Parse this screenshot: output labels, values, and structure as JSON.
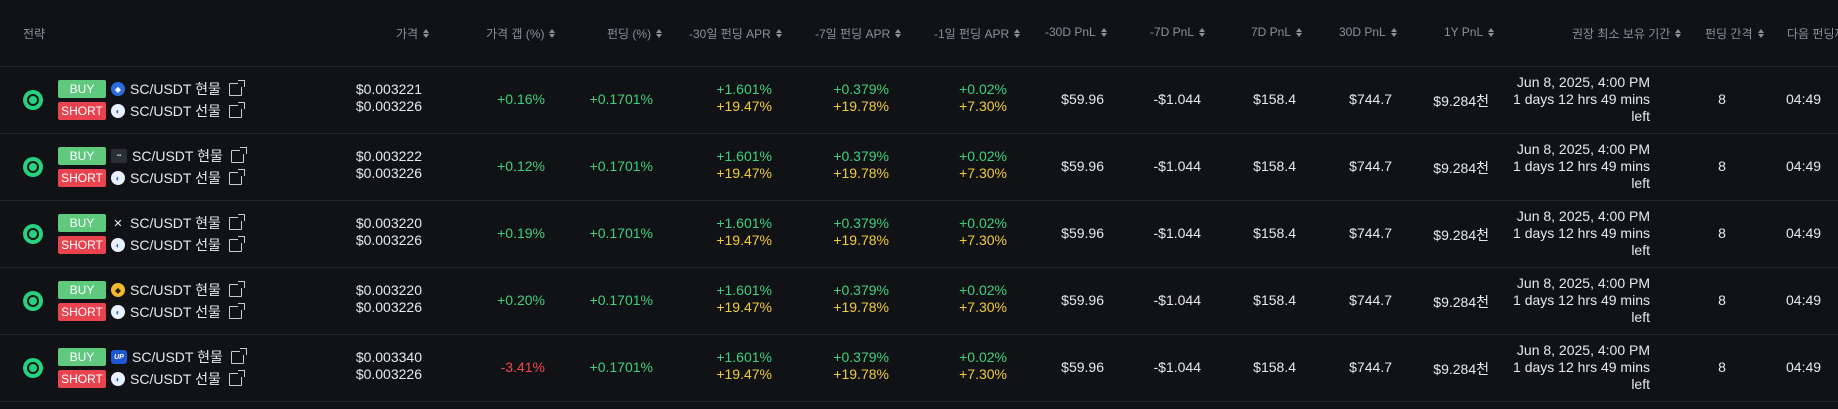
{
  "headers": {
    "strategy": "전략",
    "price": "가격",
    "gap": "가격 갭 (%)",
    "funding": "펀딩 (%)",
    "apr30": "-30일 펀딩 APR",
    "apr7": "-7일 펀딩 APR",
    "apr1": "-1일 펀딩 APR",
    "pnl30neg": "-30D PnL",
    "pnl7neg": "-7D PnL",
    "pnl7": "7D PnL",
    "pnl30": "30D PnL",
    "pnl1y": "1Y PnL",
    "hold": "권장 최소 보유 기간",
    "interval": "펀딩 간격",
    "next": "다음 펀딩까"
  },
  "labels": {
    "buy": "BUY",
    "short": "SHORT"
  },
  "rows": [
    {
      "buy_exchange_icon": "droplet-icon",
      "buy_pair": "SC/USDT 현물",
      "short_exchange_icon": "mexc-icon",
      "short_pair": "SC/USDT 선물",
      "price_buy": "$0.003221",
      "price_short": "$0.003226",
      "gap": "+0.16%",
      "gap_color": "#3fd07e",
      "funding": "+0.1701%",
      "apr30_a": "+1.601%",
      "apr30_b": "+19.47%",
      "apr7_a": "+0.379%",
      "apr7_b": "+19.78%",
      "apr1_a": "+0.02%",
      "apr1_b": "+7.30%",
      "pnl30neg": "$59.96",
      "pnl7neg": "-$1.044",
      "pnl7": "$158.4",
      "pnl30": "$744.7",
      "pnl1y": "$9.284천",
      "hold_date": "Jun 8, 2025, 4:00 PM",
      "hold_dur": "1 days 12 hrs 49 mins",
      "hold_left": "left",
      "interval": "8",
      "next": "04:49"
    },
    {
      "buy_exchange_icon": "mini-exchange-icon",
      "buy_pair": "SC/USDT 현물",
      "short_exchange_icon": "mexc-icon",
      "short_pair": "SC/USDT 선물",
      "price_buy": "$0.003222",
      "price_short": "$0.003226",
      "gap": "+0.12%",
      "gap_color": "#3fd07e",
      "funding": "+0.1701%",
      "apr30_a": "+1.601%",
      "apr30_b": "+19.47%",
      "apr7_a": "+0.379%",
      "apr7_b": "+19.78%",
      "apr1_a": "+0.02%",
      "apr1_b": "+7.30%",
      "pnl30neg": "$59.96",
      "pnl7neg": "-$1.044",
      "pnl7": "$158.4",
      "pnl30": "$744.7",
      "pnl1y": "$9.284천",
      "hold_date": "Jun 8, 2025, 4:00 PM",
      "hold_dur": "1 days 12 hrs 49 mins",
      "hold_left": "left",
      "interval": "8",
      "next": "04:49"
    },
    {
      "buy_exchange_icon": "x-exchange-icon",
      "buy_pair": "SC/USDT 현물",
      "short_exchange_icon": "mexc-icon",
      "short_pair": "SC/USDT 선물",
      "price_buy": "$0.003220",
      "price_short": "$0.003226",
      "gap": "+0.19%",
      "gap_color": "#3fd07e",
      "funding": "+0.1701%",
      "apr30_a": "+1.601%",
      "apr30_b": "+19.47%",
      "apr7_a": "+0.379%",
      "apr7_b": "+19.78%",
      "apr1_a": "+0.02%",
      "apr1_b": "+7.30%",
      "pnl30neg": "$59.96",
      "pnl7neg": "-$1.044",
      "pnl7": "$158.4",
      "pnl30": "$744.7",
      "pnl1y": "$9.284천",
      "hold_date": "Jun 8, 2025, 4:00 PM",
      "hold_dur": "1 days 12 hrs 49 mins",
      "hold_left": "left",
      "interval": "8",
      "next": "04:49"
    },
    {
      "buy_exchange_icon": "binance-icon",
      "buy_pair": "SC/USDT 현물",
      "short_exchange_icon": "mexc-icon",
      "short_pair": "SC/USDT 선물",
      "price_buy": "$0.003220",
      "price_short": "$0.003226",
      "gap": "+0.20%",
      "gap_color": "#3fd07e",
      "funding": "+0.1701%",
      "apr30_a": "+1.601%",
      "apr30_b": "+19.47%",
      "apr7_a": "+0.379%",
      "apr7_b": "+19.78%",
      "apr1_a": "+0.02%",
      "apr1_b": "+7.30%",
      "pnl30neg": "$59.96",
      "pnl7neg": "-$1.044",
      "pnl7": "$158.4",
      "pnl30": "$744.7",
      "pnl1y": "$9.284천",
      "hold_date": "Jun 8, 2025, 4:00 PM",
      "hold_dur": "1 days 12 hrs 49 mins",
      "hold_left": "left",
      "interval": "8",
      "next": "04:49"
    },
    {
      "buy_exchange_icon": "up-exchange-icon",
      "buy_pair": "SC/USDT 현물",
      "short_exchange_icon": "mexc-icon",
      "short_pair": "SC/USDT 선물",
      "price_buy": "$0.003340",
      "price_short": "$0.003226",
      "gap": "-3.41%",
      "gap_color": "#f0474f",
      "funding": "+0.1701%",
      "apr30_a": "+1.601%",
      "apr30_b": "+19.47%",
      "apr7_a": "+0.379%",
      "apr7_b": "+19.78%",
      "apr1_a": "+0.02%",
      "apr1_b": "+7.30%",
      "pnl30neg": "$59.96",
      "pnl7neg": "-$1.044",
      "pnl7": "$158.4",
      "pnl30": "$744.7",
      "pnl1y": "$9.284천",
      "hold_date": "Jun 8, 2025, 4:00 PM",
      "hold_dur": "1 days 12 hrs 49 mins",
      "hold_left": "left",
      "interval": "8",
      "next": "04:49"
    }
  ]
}
